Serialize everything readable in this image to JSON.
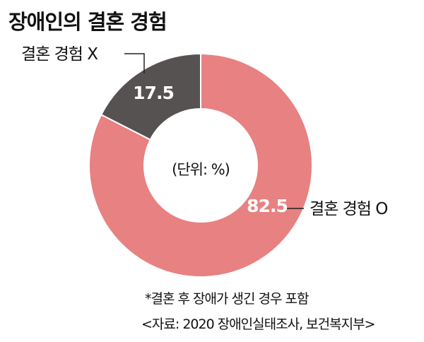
{
  "title": "장애인의 결혼 경험",
  "footnote": "*결혼 후 장애가 생긴 경우 포함",
  "source": "<자료: 2020 장애인실태조사, 보건복지부>",
  "colors": {
    "married": "#e88181",
    "not_married": "#555251",
    "text_on_dark": "#ffffff"
  },
  "chart_data": {
    "type": "pie",
    "unit_label": "(단위: %)",
    "slices": [
      {
        "label": "결혼 경험 O",
        "value": 82.5,
        "value_label": "82.5",
        "color": "#e88181"
      },
      {
        "label": "결혼 경험 X",
        "value": 17.5,
        "value_label": "17.5",
        "color": "#555251"
      }
    ]
  }
}
